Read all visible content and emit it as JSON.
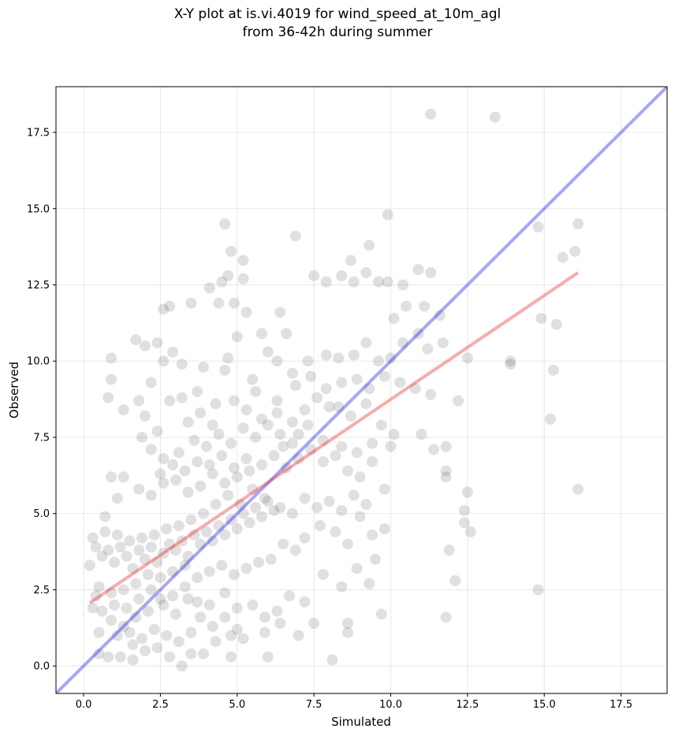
{
  "chart_data": {
    "type": "scatter",
    "title_line1": "X-Y plot at is.vi.4019 for wind_speed_at_10m_agl",
    "title_line2": "from 36-42h during summer",
    "xlabel": "Simulated",
    "ylabel": "Observed",
    "xlim": [
      -0.9,
      19.0
    ],
    "ylim": [
      -0.9,
      19.0
    ],
    "xticks": [
      "0.0",
      "2.5",
      "5.0",
      "7.5",
      "10.0",
      "12.5",
      "15.0",
      "17.5"
    ],
    "yticks": [
      "0.0",
      "2.5",
      "5.0",
      "7.5",
      "10.0",
      "12.5",
      "15.0",
      "17.5"
    ],
    "grid": true,
    "point_color": "#555555",
    "identity_line": {
      "x": [
        -0.9,
        19.0
      ],
      "y": [
        -0.9,
        19.0
      ],
      "color": "#0000ee"
    },
    "fit_line": {
      "x": [
        0.2,
        16.1
      ],
      "y": [
        2.07,
        12.9
      ],
      "color": "#ee2222"
    },
    "points": [
      [
        11.3,
        18.1
      ],
      [
        13.4,
        18.0
      ],
      [
        9.9,
        14.8
      ],
      [
        6.9,
        14.1
      ],
      [
        4.6,
        14.5
      ],
      [
        4.8,
        13.6
      ],
      [
        5.2,
        13.3
      ],
      [
        9.3,
        13.8
      ],
      [
        8.7,
        13.3
      ],
      [
        14.8,
        14.4
      ],
      [
        16.1,
        14.5
      ],
      [
        15.6,
        13.4
      ],
      [
        16.0,
        13.6
      ],
      [
        4.1,
        12.4
      ],
      [
        4.4,
        11.9
      ],
      [
        3.5,
        11.9
      ],
      [
        2.8,
        11.8
      ],
      [
        2.6,
        11.7
      ],
      [
        4.9,
        11.9
      ],
      [
        5.2,
        12.7
      ],
      [
        4.7,
        12.8
      ],
      [
        4.5,
        12.6
      ],
      [
        5.3,
        11.6
      ],
      [
        6.4,
        11.6
      ],
      [
        7.5,
        12.8
      ],
      [
        7.9,
        12.6
      ],
      [
        8.4,
        12.8
      ],
      [
        8.8,
        12.6
      ],
      [
        9.2,
        12.9
      ],
      [
        9.6,
        12.6
      ],
      [
        9.9,
        12.6
      ],
      [
        10.4,
        12.5
      ],
      [
        10.9,
        13.0
      ],
      [
        11.3,
        12.9
      ],
      [
        10.1,
        11.4
      ],
      [
        10.5,
        11.8
      ],
      [
        11.1,
        11.8
      ],
      [
        11.6,
        11.5
      ],
      [
        14.9,
        11.4
      ],
      [
        15.4,
        11.2
      ],
      [
        12.5,
        10.1
      ],
      [
        11.7,
        10.6
      ],
      [
        13.9,
        10.0
      ],
      [
        13.9,
        9.9
      ],
      [
        15.3,
        9.7
      ],
      [
        15.2,
        8.1
      ],
      [
        12.2,
        8.7
      ],
      [
        11.3,
        8.9
      ],
      [
        11.8,
        7.2
      ],
      [
        11.4,
        7.1
      ],
      [
        11.0,
        7.6
      ],
      [
        1.7,
        10.7
      ],
      [
        2.0,
        10.5
      ],
      [
        2.4,
        10.6
      ],
      [
        2.6,
        10.0
      ],
      [
        2.2,
        9.3
      ],
      [
        2.9,
        10.3
      ],
      [
        3.2,
        9.9
      ],
      [
        1.3,
        8.4
      ],
      [
        0.8,
        8.8
      ],
      [
        0.9,
        10.1
      ],
      [
        0.9,
        9.4
      ],
      [
        2.0,
        8.2
      ],
      [
        1.8,
        8.7
      ],
      [
        2.8,
        8.7
      ],
      [
        4.7,
        10.1
      ],
      [
        4.6,
        9.7
      ],
      [
        5.5,
        9.4
      ],
      [
        6.0,
        10.3
      ],
      [
        6.3,
        10.0
      ],
      [
        6.8,
        9.6
      ],
      [
        7.3,
        10.0
      ],
      [
        7.9,
        10.2
      ],
      [
        8.3,
        10.1
      ],
      [
        8.8,
        10.2
      ],
      [
        9.2,
        10.6
      ],
      [
        9.6,
        10.0
      ],
      [
        10.0,
        10.1
      ],
      [
        10.4,
        10.6
      ],
      [
        10.9,
        10.9
      ],
      [
        11.2,
        10.4
      ],
      [
        6.6,
        10.9
      ],
      [
        5.8,
        10.9
      ],
      [
        5.0,
        10.8
      ],
      [
        3.9,
        9.8
      ],
      [
        3.7,
        9.0
      ],
      [
        3.2,
        8.8
      ],
      [
        4.3,
        8.6
      ],
      [
        4.9,
        8.7
      ],
      [
        5.6,
        9.0
      ],
      [
        6.3,
        8.7
      ],
      [
        6.9,
        9.2
      ],
      [
        7.4,
        9.5
      ],
      [
        7.9,
        9.1
      ],
      [
        8.4,
        9.3
      ],
      [
        8.9,
        9.4
      ],
      [
        9.3,
        9.1
      ],
      [
        9.8,
        9.5
      ],
      [
        10.3,
        9.3
      ],
      [
        10.8,
        9.1
      ],
      [
        8.3,
        8.5
      ],
      [
        8.7,
        8.2
      ],
      [
        9.2,
        8.6
      ],
      [
        9.7,
        7.9
      ],
      [
        10.1,
        7.6
      ],
      [
        10.0,
        7.2
      ],
      [
        9.4,
        7.3
      ],
      [
        8.9,
        7.0
      ],
      [
        8.4,
        7.2
      ],
      [
        7.8,
        7.4
      ],
      [
        7.3,
        7.9
      ],
      [
        6.8,
        8.0
      ],
      [
        6.3,
        8.3
      ],
      [
        5.8,
        8.1
      ],
      [
        5.3,
        8.4
      ],
      [
        11.8,
        6.4
      ],
      [
        11.8,
        6.2
      ],
      [
        12.5,
        5.7
      ],
      [
        12.4,
        5.1
      ],
      [
        12.4,
        4.7
      ],
      [
        12.6,
        4.4
      ],
      [
        11.9,
        3.8
      ],
      [
        12.1,
        2.8
      ],
      [
        11.8,
        1.6
      ],
      [
        14.8,
        2.5
      ],
      [
        16.1,
        5.8
      ],
      [
        8.6,
        1.4
      ],
      [
        8.6,
        1.1
      ],
      [
        9.7,
        1.7
      ],
      [
        8.1,
        0.2
      ],
      [
        7.0,
        1.0
      ],
      [
        6.4,
        1.4
      ],
      [
        5.9,
        1.1
      ],
      [
        5.2,
        0.9
      ],
      [
        4.8,
        1.0
      ],
      [
        4.3,
        0.8
      ],
      [
        3.9,
        0.4
      ],
      [
        3.5,
        0.4
      ],
      [
        3.2,
        0.0
      ],
      [
        2.8,
        0.3
      ],
      [
        2.4,
        0.6
      ],
      [
        2.0,
        0.5
      ],
      [
        1.6,
        0.7
      ],
      [
        1.2,
        0.3
      ],
      [
        0.8,
        0.3
      ],
      [
        0.5,
        0.4
      ],
      [
        1.6,
        0.2
      ],
      [
        4.8,
        0.3
      ],
      [
        6.0,
        0.3
      ],
      [
        7.5,
        1.4
      ],
      [
        9.3,
        2.7
      ],
      [
        9.5,
        3.5
      ],
      [
        8.9,
        3.2
      ],
      [
        8.4,
        2.6
      ],
      [
        7.8,
        3.0
      ],
      [
        7.2,
        2.1
      ],
      [
        6.7,
        2.3
      ],
      [
        6.3,
        1.8
      ],
      [
        5.9,
        1.6
      ],
      [
        5.5,
        2.0
      ],
      [
        5.0,
        1.9
      ],
      [
        4.6,
        2.4
      ],
      [
        4.1,
        2.0
      ],
      [
        3.7,
        2.1
      ],
      [
        3.3,
        2.6
      ],
      [
        2.9,
        2.3
      ],
      [
        2.5,
        2.2
      ],
      [
        2.1,
        1.8
      ],
      [
        1.7,
        1.6
      ],
      [
        1.3,
        1.3
      ],
      [
        0.9,
        1.5
      ],
      [
        0.5,
        1.1
      ],
      [
        0.3,
        1.9
      ],
      [
        9.8,
        4.5
      ],
      [
        9.4,
        4.3
      ],
      [
        9.0,
        4.9
      ],
      [
        8.6,
        4.0
      ],
      [
        8.2,
        4.4
      ],
      [
        7.7,
        4.6
      ],
      [
        7.2,
        4.2
      ],
      [
        6.9,
        3.8
      ],
      [
        6.5,
        4.0
      ],
      [
        6.1,
        3.5
      ],
      [
        5.7,
        3.4
      ],
      [
        5.3,
        3.2
      ],
      [
        4.9,
        3.0
      ],
      [
        4.5,
        3.3
      ],
      [
        4.1,
        3.1
      ],
      [
        3.7,
        2.9
      ],
      [
        3.3,
        3.3
      ],
      [
        2.9,
        3.1
      ],
      [
        2.5,
        2.9
      ],
      [
        2.1,
        3.0
      ],
      [
        1.7,
        2.7
      ],
      [
        1.3,
        2.5
      ],
      [
        0.9,
        2.4
      ],
      [
        0.5,
        2.6
      ],
      [
        0.2,
        3.3
      ],
      [
        0.3,
        4.2
      ],
      [
        0.7,
        4.9
      ],
      [
        1.1,
        5.5
      ],
      [
        0.9,
        6.2
      ],
      [
        1.3,
        6.2
      ],
      [
        1.8,
        5.8
      ],
      [
        2.2,
        5.6
      ],
      [
        2.6,
        6.0
      ],
      [
        3.0,
        6.1
      ],
      [
        3.4,
        5.7
      ],
      [
        3.8,
        5.9
      ],
      [
        4.2,
        6.3
      ],
      [
        4.6,
        6.0
      ],
      [
        5.0,
        6.2
      ],
      [
        5.4,
        6.4
      ],
      [
        5.8,
        6.6
      ],
      [
        6.2,
        6.9
      ],
      [
        6.6,
        6.5
      ],
      [
        7.0,
        6.8
      ],
      [
        7.4,
        7.1
      ],
      [
        7.8,
        6.7
      ],
      [
        8.2,
        6.9
      ],
      [
        8.6,
        6.4
      ],
      [
        9.0,
        6.2
      ],
      [
        9.4,
        6.7
      ],
      [
        9.8,
        5.8
      ],
      [
        9.2,
        5.3
      ],
      [
        8.8,
        5.6
      ],
      [
        8.4,
        5.1
      ],
      [
        8.0,
        5.4
      ],
      [
        7.6,
        5.2
      ],
      [
        7.2,
        5.5
      ],
      [
        6.8,
        5.0
      ],
      [
        6.4,
        5.2
      ],
      [
        0.4,
        3.9
      ],
      [
        0.6,
        3.6
      ],
      [
        0.8,
        3.8
      ],
      [
        1.0,
        3.4
      ],
      [
        1.2,
        3.9
      ],
      [
        1.4,
        3.6
      ],
      [
        1.6,
        3.2
      ],
      [
        1.8,
        3.8
      ],
      [
        2.0,
        3.5
      ],
      [
        2.2,
        3.9
      ],
      [
        2.4,
        3.4
      ],
      [
        2.6,
        3.7
      ],
      [
        2.8,
        4.0
      ],
      [
        3.0,
        3.8
      ],
      [
        3.2,
        4.1
      ],
      [
        3.4,
        3.6
      ],
      [
        3.6,
        4.3
      ],
      [
        3.8,
        4.0
      ],
      [
        4.0,
        4.4
      ],
      [
        4.2,
        4.1
      ],
      [
        4.4,
        4.6
      ],
      [
        4.6,
        4.3
      ],
      [
        4.8,
        4.8
      ],
      [
        5.0,
        4.5
      ],
      [
        5.2,
        5.0
      ],
      [
        5.4,
        4.7
      ],
      [
        5.6,
        5.2
      ],
      [
        5.8,
        4.9
      ],
      [
        6.0,
        5.4
      ],
      [
        6.2,
        5.1
      ],
      [
        4.3,
        5.3
      ],
      [
        4.7,
        5.6
      ],
      [
        5.1,
        5.3
      ],
      [
        5.5,
        5.8
      ],
      [
        5.9,
        5.5
      ],
      [
        3.9,
        5.0
      ],
      [
        3.5,
        4.8
      ],
      [
        3.1,
        4.6
      ],
      [
        2.7,
        4.5
      ],
      [
        2.3,
        4.3
      ],
      [
        1.9,
        4.2
      ],
      [
        1.5,
        4.1
      ],
      [
        1.1,
        4.3
      ],
      [
        0.7,
        4.4
      ],
      [
        1.0,
        2.0
      ],
      [
        1.4,
        1.9
      ],
      [
        1.8,
        2.2
      ],
      [
        2.2,
        2.5
      ],
      [
        2.6,
        2.0
      ],
      [
        3.0,
        1.7
      ],
      [
        3.4,
        2.2
      ],
      [
        3.8,
        1.6
      ],
      [
        4.2,
        1.3
      ],
      [
        4.6,
        1.6
      ],
      [
        5.0,
        1.2
      ],
      [
        1.1,
        1.0
      ],
      [
        1.5,
        1.1
      ],
      [
        1.9,
        0.9
      ],
      [
        2.3,
        1.2
      ],
      [
        2.7,
        1.0
      ],
      [
        3.1,
        0.8
      ],
      [
        3.5,
        1.1
      ],
      [
        0.6,
        1.8
      ],
      [
        0.4,
        2.3
      ],
      [
        3.1,
        7.0
      ],
      [
        3.6,
        7.4
      ],
      [
        4.0,
        7.2
      ],
      [
        4.4,
        7.6
      ],
      [
        4.8,
        7.3
      ],
      [
        5.2,
        7.8
      ],
      [
        5.6,
        7.5
      ],
      [
        6.0,
        7.9
      ],
      [
        6.4,
        7.6
      ],
      [
        6.8,
        7.3
      ],
      [
        2.6,
        6.8
      ],
      [
        2.2,
        7.1
      ],
      [
        1.9,
        7.5
      ],
      [
        2.4,
        7.7
      ],
      [
        3.4,
        8.0
      ],
      [
        3.8,
        8.3
      ],
      [
        4.2,
        7.9
      ],
      [
        7.2,
        8.4
      ],
      [
        7.6,
        8.8
      ],
      [
        8.0,
        8.5
      ],
      [
        6.5,
        7.2
      ],
      [
        7.0,
        7.6
      ],
      [
        5.3,
        6.8
      ],
      [
        4.9,
        6.5
      ],
      [
        4.5,
        6.9
      ],
      [
        4.1,
        6.6
      ],
      [
        3.7,
        6.7
      ],
      [
        3.3,
        6.4
      ],
      [
        2.9,
        6.6
      ],
      [
        2.5,
        6.3
      ]
    ]
  }
}
